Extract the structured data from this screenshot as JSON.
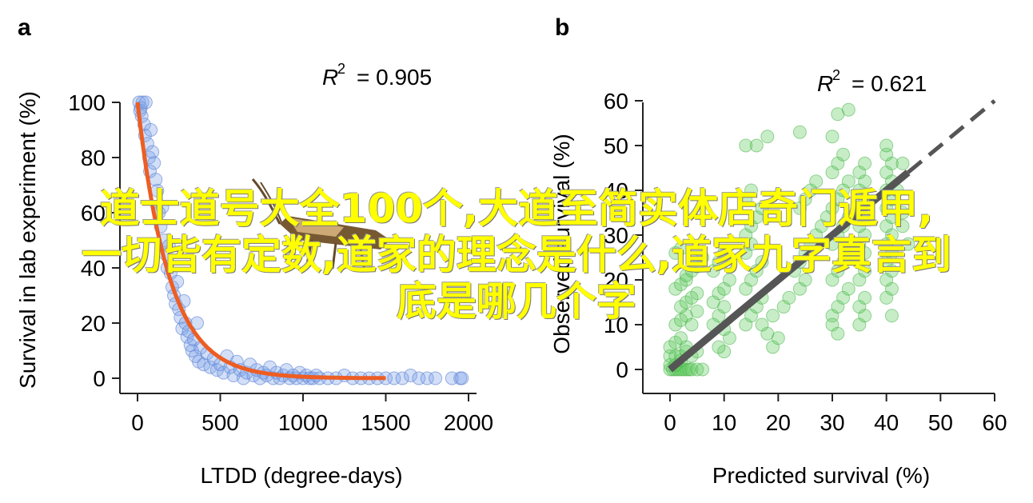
{
  "chart_data": [
    {
      "panel_label": "a",
      "type": "scatter",
      "xlabel": "LTDD (degree-days)",
      "ylabel": "Survival in lab experiment (%)",
      "xlim": [
        0,
        2000
      ],
      "ylim": [
        0,
        100
      ],
      "xticks": [
        "0",
        "500",
        "1000",
        "1500",
        "2000"
      ],
      "yticks": [
        "0",
        "20",
        "40",
        "60",
        "80",
        "100"
      ],
      "annotation": "R² = 0.905",
      "r2_symbol": "R",
      "r2_sup": "2",
      "r2_value": "= 0.905",
      "point_color": "#7fa3e8",
      "fit_color": "#ee5d22",
      "fit_curve": {
        "model": "exponential decay",
        "x_range": [
          0,
          1500
        ],
        "y_start": 100,
        "rate": 0.0052
      },
      "points": [
        [
          10,
          100
        ],
        [
          20,
          98
        ],
        [
          25,
          95
        ],
        [
          30,
          100
        ],
        [
          15,
          97
        ],
        [
          40,
          92
        ],
        [
          45,
          88
        ],
        [
          50,
          100
        ],
        [
          60,
          85
        ],
        [
          70,
          80
        ],
        [
          75,
          75
        ],
        [
          80,
          90
        ],
        [
          90,
          82
        ],
        [
          100,
          78
        ],
        [
          110,
          72
        ],
        [
          120,
          68
        ],
        [
          130,
          60
        ],
        [
          140,
          55
        ],
        [
          150,
          62
        ],
        [
          160,
          50
        ],
        [
          170,
          45
        ],
        [
          180,
          40
        ],
        [
          190,
          48
        ],
        [
          200,
          38
        ],
        [
          210,
          33
        ],
        [
          220,
          30
        ],
        [
          230,
          27
        ],
        [
          240,
          35
        ],
        [
          250,
          25
        ],
        [
          260,
          22
        ],
        [
          270,
          18
        ],
        [
          280,
          28
        ],
        [
          290,
          20
        ],
        [
          300,
          15
        ],
        [
          310,
          17
        ],
        [
          320,
          12
        ],
        [
          330,
          10
        ],
        [
          340,
          14
        ],
        [
          350,
          8
        ],
        [
          360,
          20
        ],
        [
          370,
          6
        ],
        [
          380,
          11
        ],
        [
          400,
          5
        ],
        [
          420,
          9
        ],
        [
          440,
          4
        ],
        [
          460,
          7
        ],
        [
          480,
          3
        ],
        [
          500,
          5
        ],
        [
          520,
          2
        ],
        [
          540,
          8
        ],
        [
          560,
          4
        ],
        [
          580,
          1
        ],
        [
          600,
          6
        ],
        [
          620,
          3
        ],
        [
          640,
          0
        ],
        [
          660,
          2
        ],
        [
          680,
          5
        ],
        [
          700,
          1
        ],
        [
          720,
          3
        ],
        [
          740,
          0
        ],
        [
          760,
          2
        ],
        [
          780,
          1
        ],
        [
          800,
          4
        ],
        [
          820,
          0
        ],
        [
          840,
          2
        ],
        [
          860,
          0
        ],
        [
          880,
          1
        ],
        [
          900,
          3
        ],
        [
          920,
          0
        ],
        [
          940,
          1
        ],
        [
          960,
          0
        ],
        [
          980,
          2
        ],
        [
          1000,
          0
        ],
        [
          1020,
          1
        ],
        [
          1040,
          0
        ],
        [
          1060,
          0
        ],
        [
          1080,
          1
        ],
        [
          1100,
          0
        ],
        [
          1150,
          0
        ],
        [
          1200,
          0
        ],
        [
          1250,
          1
        ],
        [
          1300,
          0
        ],
        [
          1350,
          0
        ],
        [
          1400,
          0
        ],
        [
          1450,
          0
        ],
        [
          1500,
          0
        ],
        [
          1550,
          0
        ],
        [
          1600,
          0
        ],
        [
          1650,
          1
        ],
        [
          1700,
          0
        ],
        [
          1750,
          0
        ],
        [
          1800,
          0
        ],
        [
          1900,
          0
        ],
        [
          1950,
          0
        ],
        [
          1960,
          0
        ]
      ]
    },
    {
      "panel_label": "b",
      "type": "scatter",
      "xlabel": "Predicted survival (%)",
      "ylabel": "Observed survival (%)",
      "xlim": [
        0,
        60
      ],
      "ylim": [
        0,
        60
      ],
      "xticks": [
        "0",
        "10",
        "20",
        "30",
        "40",
        "50",
        "60"
      ],
      "yticks": [
        "0",
        "10",
        "20",
        "30",
        "40",
        "50",
        "60"
      ],
      "annotation": "R² = 0.621",
      "r2_symbol": "R",
      "r2_sup": "2",
      "r2_value": "= 0.621",
      "point_color": "#5fcc5f",
      "fit_color": "#555555",
      "fit_line": {
        "x_range": [
          0,
          44
        ],
        "intercept": 0,
        "slope": 1
      },
      "extrapolation_line": {
        "x_range": [
          44,
          60
        ],
        "style": "dashed"
      },
      "points": [
        [
          0,
          0
        ],
        [
          0.5,
          0
        ],
        [
          1,
          0
        ],
        [
          1.5,
          0
        ],
        [
          2,
          0
        ],
        [
          2.5,
          0
        ],
        [
          3,
          0
        ],
        [
          3.5,
          0
        ],
        [
          4,
          0
        ],
        [
          5,
          0
        ],
        [
          6,
          0
        ],
        [
          0,
          1
        ],
        [
          1,
          1
        ],
        [
          2,
          2
        ],
        [
          0,
          3
        ],
        [
          1,
          3
        ],
        [
          2,
          3
        ],
        [
          3,
          4
        ],
        [
          0,
          5
        ],
        [
          1,
          6
        ],
        [
          2,
          7
        ],
        [
          3,
          5
        ],
        [
          4,
          3
        ],
        [
          5,
          4
        ],
        [
          1,
          10
        ],
        [
          2,
          11
        ],
        [
          3,
          12
        ],
        [
          4,
          10
        ],
        [
          5,
          13
        ],
        [
          2,
          14
        ],
        [
          3,
          15
        ],
        [
          4,
          16
        ],
        [
          5,
          17
        ],
        [
          1,
          18
        ],
        [
          2,
          19
        ],
        [
          3,
          20
        ],
        [
          4,
          22
        ],
        [
          5,
          23
        ],
        [
          6,
          25
        ],
        [
          1,
          26
        ],
        [
          2,
          27
        ],
        [
          3,
          21
        ],
        [
          8,
          10
        ],
        [
          9,
          12
        ],
        [
          10,
          14
        ],
        [
          8,
          15
        ],
        [
          9,
          17
        ],
        [
          10,
          18
        ],
        [
          11,
          20
        ],
        [
          8,
          22
        ],
        [
          9,
          24
        ],
        [
          10,
          26
        ],
        [
          10,
          4
        ],
        [
          9,
          5
        ],
        [
          11,
          7
        ],
        [
          10,
          9
        ],
        [
          14,
          10
        ],
        [
          15,
          12
        ],
        [
          16,
          14
        ],
        [
          17,
          16
        ],
        [
          14,
          18
        ],
        [
          15,
          20
        ],
        [
          16,
          22
        ],
        [
          17,
          24
        ],
        [
          14,
          26
        ],
        [
          15,
          28
        ],
        [
          14,
          30
        ],
        [
          15,
          32
        ],
        [
          16,
          34
        ],
        [
          17,
          36
        ],
        [
          14,
          38
        ],
        [
          15,
          40
        ],
        [
          14,
          50
        ],
        [
          16,
          50
        ],
        [
          18,
          52
        ],
        [
          24,
          53
        ],
        [
          30,
          52
        ],
        [
          31,
          57
        ],
        [
          33,
          58
        ],
        [
          19,
          5
        ],
        [
          20,
          7
        ],
        [
          18,
          8
        ],
        [
          17,
          10
        ],
        [
          19,
          12
        ],
        [
          21,
          14
        ],
        [
          22,
          16
        ],
        [
          24,
          18
        ],
        [
          25,
          20
        ],
        [
          23,
          22
        ],
        [
          24,
          24
        ],
        [
          25,
          26
        ],
        [
          26,
          28
        ],
        [
          27,
          30
        ],
        [
          28,
          32
        ],
        [
          29,
          34
        ],
        [
          24,
          36
        ],
        [
          25,
          38
        ],
        [
          26,
          40
        ],
        [
          27,
          42
        ],
        [
          30,
          12
        ],
        [
          31,
          14
        ],
        [
          32,
          16
        ],
        [
          33,
          18
        ],
        [
          30,
          20
        ],
        [
          31,
          22
        ],
        [
          32,
          24
        ],
        [
          33,
          26
        ],
        [
          30,
          28
        ],
        [
          31,
          30
        ],
        [
          32,
          32
        ],
        [
          33,
          34
        ],
        [
          30,
          36
        ],
        [
          31,
          38
        ],
        [
          32,
          40
        ],
        [
          33,
          42
        ],
        [
          30,
          44
        ],
        [
          31,
          46
        ],
        [
          32,
          48
        ],
        [
          30,
          10
        ],
        [
          31,
          8
        ],
        [
          35,
          10
        ],
        [
          36,
          12
        ],
        [
          35,
          14
        ],
        [
          36,
          16
        ],
        [
          35,
          20
        ],
        [
          36,
          22
        ],
        [
          35,
          24
        ],
        [
          36,
          26
        ],
        [
          35,
          28
        ],
        [
          36,
          30
        ],
        [
          35,
          32
        ],
        [
          36,
          34
        ],
        [
          35,
          36
        ],
        [
          36,
          38
        ],
        [
          35,
          40
        ],
        [
          36,
          42
        ],
        [
          35,
          44
        ],
        [
          36,
          46
        ],
        [
          40,
          16
        ],
        [
          41,
          18
        ],
        [
          40,
          20
        ],
        [
          41,
          22
        ],
        [
          40,
          24
        ],
        [
          41,
          26
        ],
        [
          40,
          28
        ],
        [
          41,
          30
        ],
        [
          40,
          32
        ],
        [
          41,
          34
        ],
        [
          40,
          36
        ],
        [
          41,
          38
        ],
        [
          40,
          40
        ],
        [
          41,
          42
        ],
        [
          40,
          44
        ],
        [
          41,
          46
        ],
        [
          40,
          48
        ],
        [
          40,
          50
        ],
        [
          41,
          12
        ],
        [
          43,
          32
        ],
        [
          44,
          28
        ],
        [
          43,
          35
        ],
        [
          42,
          40
        ],
        [
          43,
          46
        ]
      ]
    }
  ],
  "overlay": {
    "line1": "道士道号大全100个,大道至简实体店奇门遁甲,",
    "line2": "一切皆有定数,道家的理念是什么,道家九字真言到",
    "line3": "底是哪几个字"
  }
}
